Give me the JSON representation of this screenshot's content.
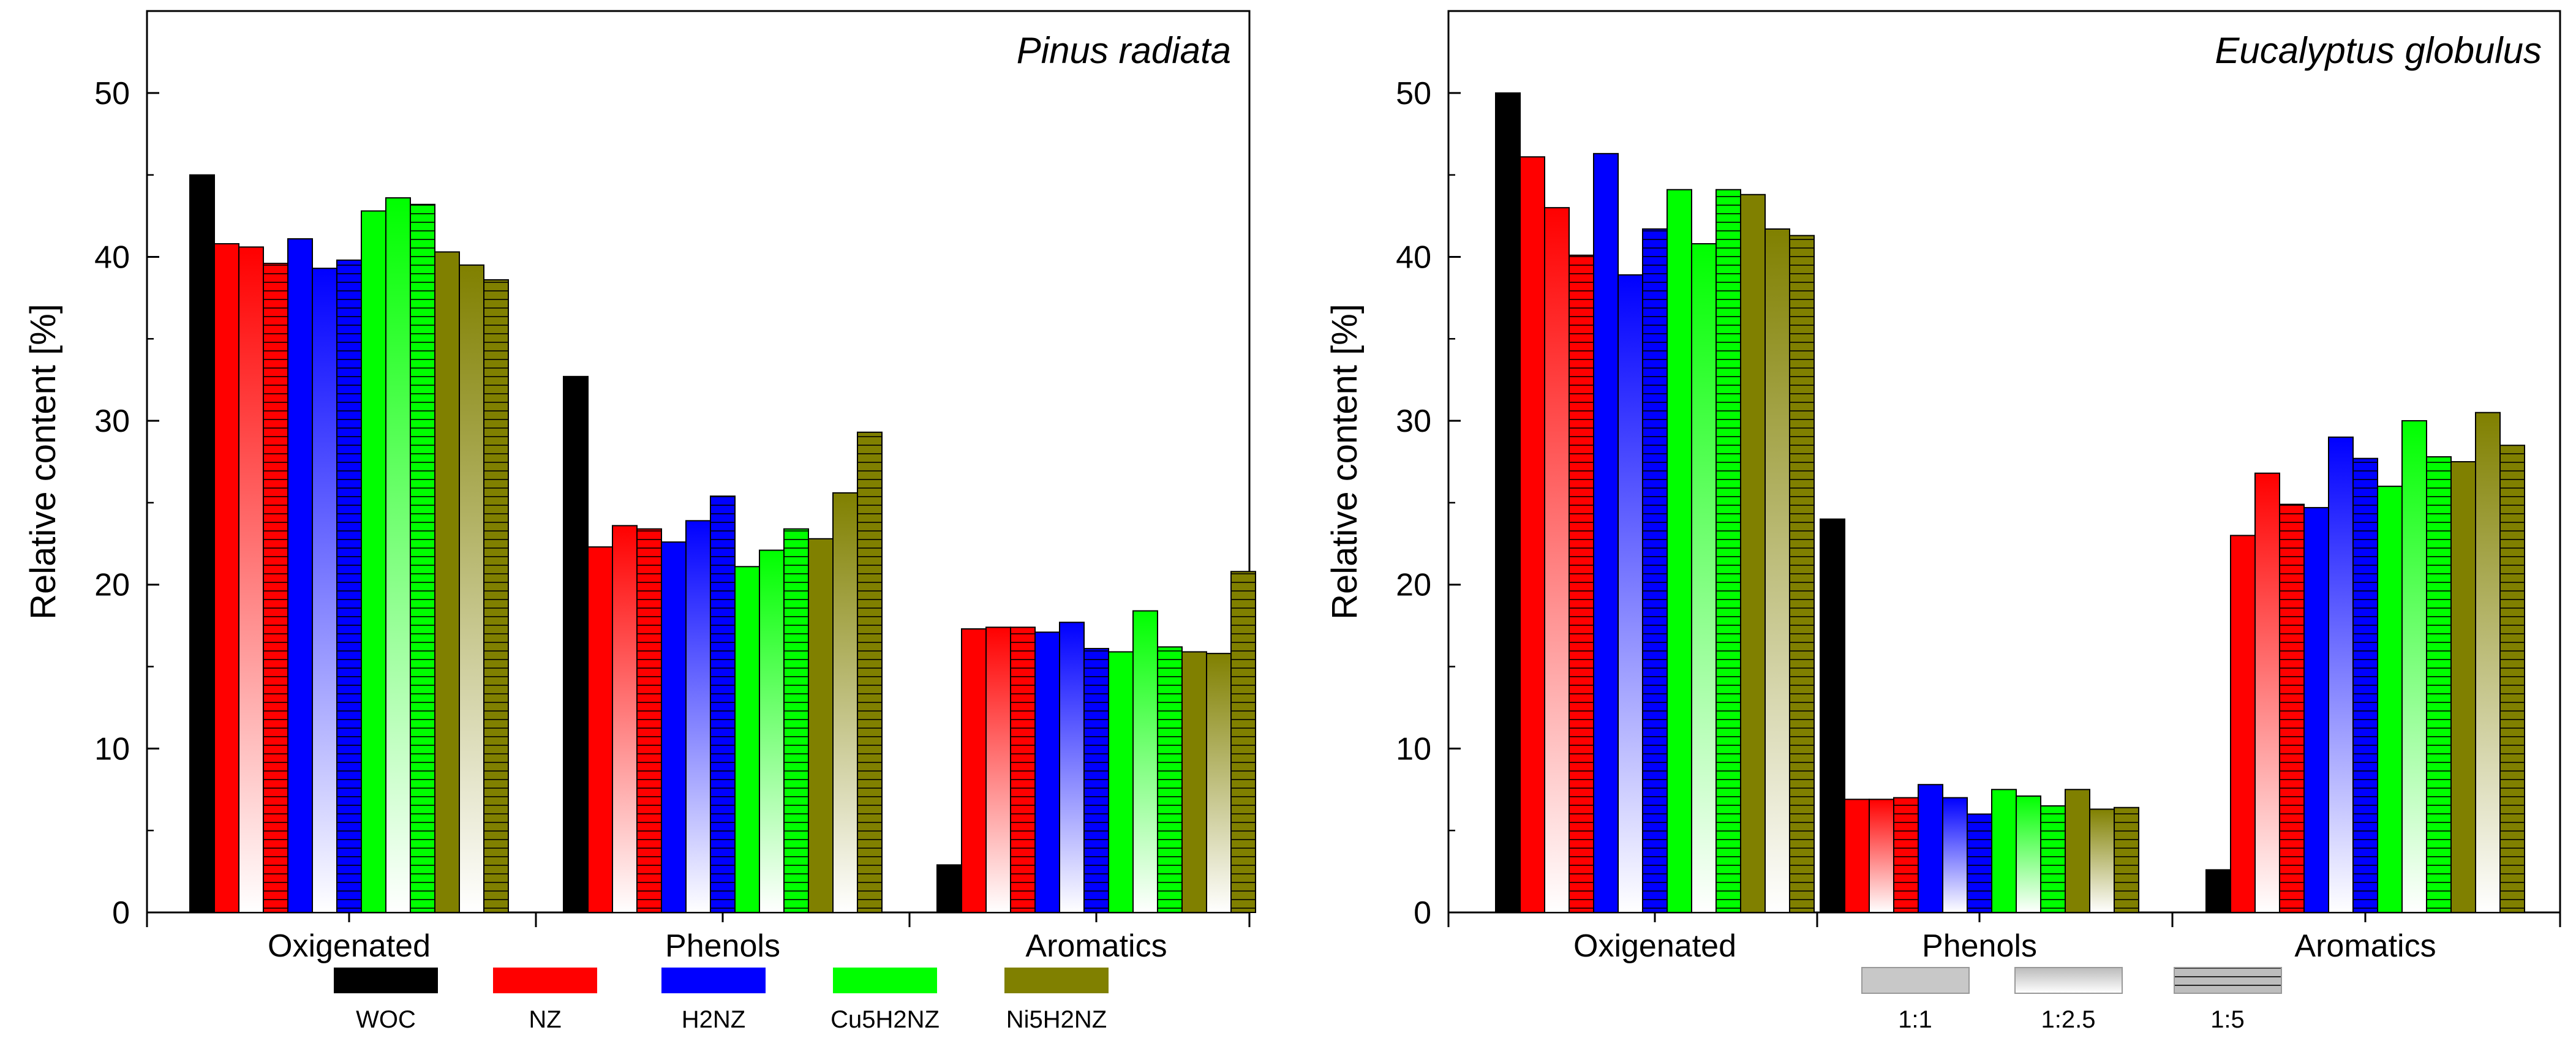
{
  "chart_data": [
    {
      "type": "bar",
      "title": "Pinus radiata",
      "xlabel": "",
      "ylabel": "Relative content [%]",
      "ylim": [
        0,
        55
      ],
      "yticks": [
        0,
        10,
        20,
        30,
        40,
        50
      ],
      "categories": [
        "Oxigenated",
        "Phenols",
        "Aromatics"
      ],
      "series": [
        {
          "name": "WOC",
          "ratio": "",
          "values": [
            45.0,
            32.7,
            2.9
          ]
        },
        {
          "name": "NZ",
          "ratio": "1:1",
          "values": [
            40.8,
            22.3,
            17.3
          ]
        },
        {
          "name": "NZ",
          "ratio": "1:2.5",
          "values": [
            40.6,
            23.6,
            17.4
          ]
        },
        {
          "name": "NZ",
          "ratio": "1:5",
          "values": [
            39.6,
            23.4,
            17.4
          ]
        },
        {
          "name": "H2NZ",
          "ratio": "1:1",
          "values": [
            41.1,
            22.6,
            17.1
          ]
        },
        {
          "name": "H2NZ",
          "ratio": "1:2.5",
          "values": [
            39.3,
            23.9,
            17.7
          ]
        },
        {
          "name": "H2NZ",
          "ratio": "1:5",
          "values": [
            39.8,
            25.4,
            16.1
          ]
        },
        {
          "name": "Cu5H2NZ",
          "ratio": "1:1",
          "values": [
            42.8,
            21.1,
            15.9
          ]
        },
        {
          "name": "Cu5H2NZ",
          "ratio": "1:2.5",
          "values": [
            43.6,
            22.1,
            18.4
          ]
        },
        {
          "name": "Cu5H2NZ",
          "ratio": "1:5",
          "values": [
            43.2,
            23.4,
            16.2
          ]
        },
        {
          "name": "Ni5H2NZ",
          "ratio": "1:1",
          "values": [
            40.3,
            22.8,
            15.9
          ]
        },
        {
          "name": "Ni5H2NZ",
          "ratio": "1:2.5",
          "values": [
            39.5,
            25.6,
            15.8
          ]
        },
        {
          "name": "Ni5H2NZ",
          "ratio": "1:5",
          "values": [
            38.6,
            29.3,
            20.8
          ]
        }
      ]
    },
    {
      "type": "bar",
      "title": "Eucalyptus globulus",
      "xlabel": "",
      "ylabel": "Relative content [%]",
      "ylim": [
        0,
        55
      ],
      "yticks": [
        0,
        10,
        20,
        30,
        40,
        50
      ],
      "categories": [
        "Oxigenated",
        "Phenols",
        "Aromatics"
      ],
      "series": [
        {
          "name": "WOC",
          "ratio": "",
          "values": [
            50.0,
            24.0,
            2.6
          ]
        },
        {
          "name": "NZ",
          "ratio": "1:1",
          "values": [
            46.1,
            6.9,
            23.0
          ]
        },
        {
          "name": "NZ",
          "ratio": "1:2.5",
          "values": [
            43.0,
            6.9,
            26.8
          ]
        },
        {
          "name": "NZ",
          "ratio": "1:5",
          "values": [
            40.1,
            7.0,
            24.9
          ]
        },
        {
          "name": "H2NZ",
          "ratio": "1:1",
          "values": [
            46.3,
            7.8,
            24.7
          ]
        },
        {
          "name": "H2NZ",
          "ratio": "1:2.5",
          "values": [
            38.9,
            7.0,
            29.0
          ]
        },
        {
          "name": "H2NZ",
          "ratio": "1:5",
          "values": [
            41.7,
            6.0,
            27.7
          ]
        },
        {
          "name": "Cu5H2NZ",
          "ratio": "1:1",
          "values": [
            44.1,
            7.5,
            26.0
          ]
        },
        {
          "name": "Cu5H2NZ",
          "ratio": "1:2.5",
          "values": [
            40.8,
            7.1,
            30.0
          ]
        },
        {
          "name": "Cu5H2NZ",
          "ratio": "1:5",
          "values": [
            44.1,
            6.5,
            27.8
          ]
        },
        {
          "name": "Ni5H2NZ",
          "ratio": "1:1",
          "values": [
            43.8,
            7.5,
            27.5
          ]
        },
        {
          "name": "Ni5H2NZ",
          "ratio": "1:2.5",
          "values": [
            41.7,
            6.3,
            30.5
          ]
        },
        {
          "name": "Ni5H2NZ",
          "ratio": "1:5",
          "values": [
            41.3,
            6.4,
            28.5
          ]
        }
      ]
    }
  ],
  "legend": {
    "catalysts": [
      {
        "label": "WOC",
        "color": "#000000"
      },
      {
        "label": "NZ",
        "color": "#ff0000"
      },
      {
        "label": "H2NZ",
        "color": "#0000ff"
      },
      {
        "label": "Cu5H2NZ",
        "color": "#00ff00"
      },
      {
        "label": "Ni5H2NZ",
        "color": "#808000"
      }
    ],
    "ratios": [
      {
        "label": "1:1",
        "style": "solid-gray"
      },
      {
        "label": "1:2.5",
        "style": "gradient-gray"
      },
      {
        "label": "1:5",
        "style": "striped-gray"
      }
    ]
  }
}
